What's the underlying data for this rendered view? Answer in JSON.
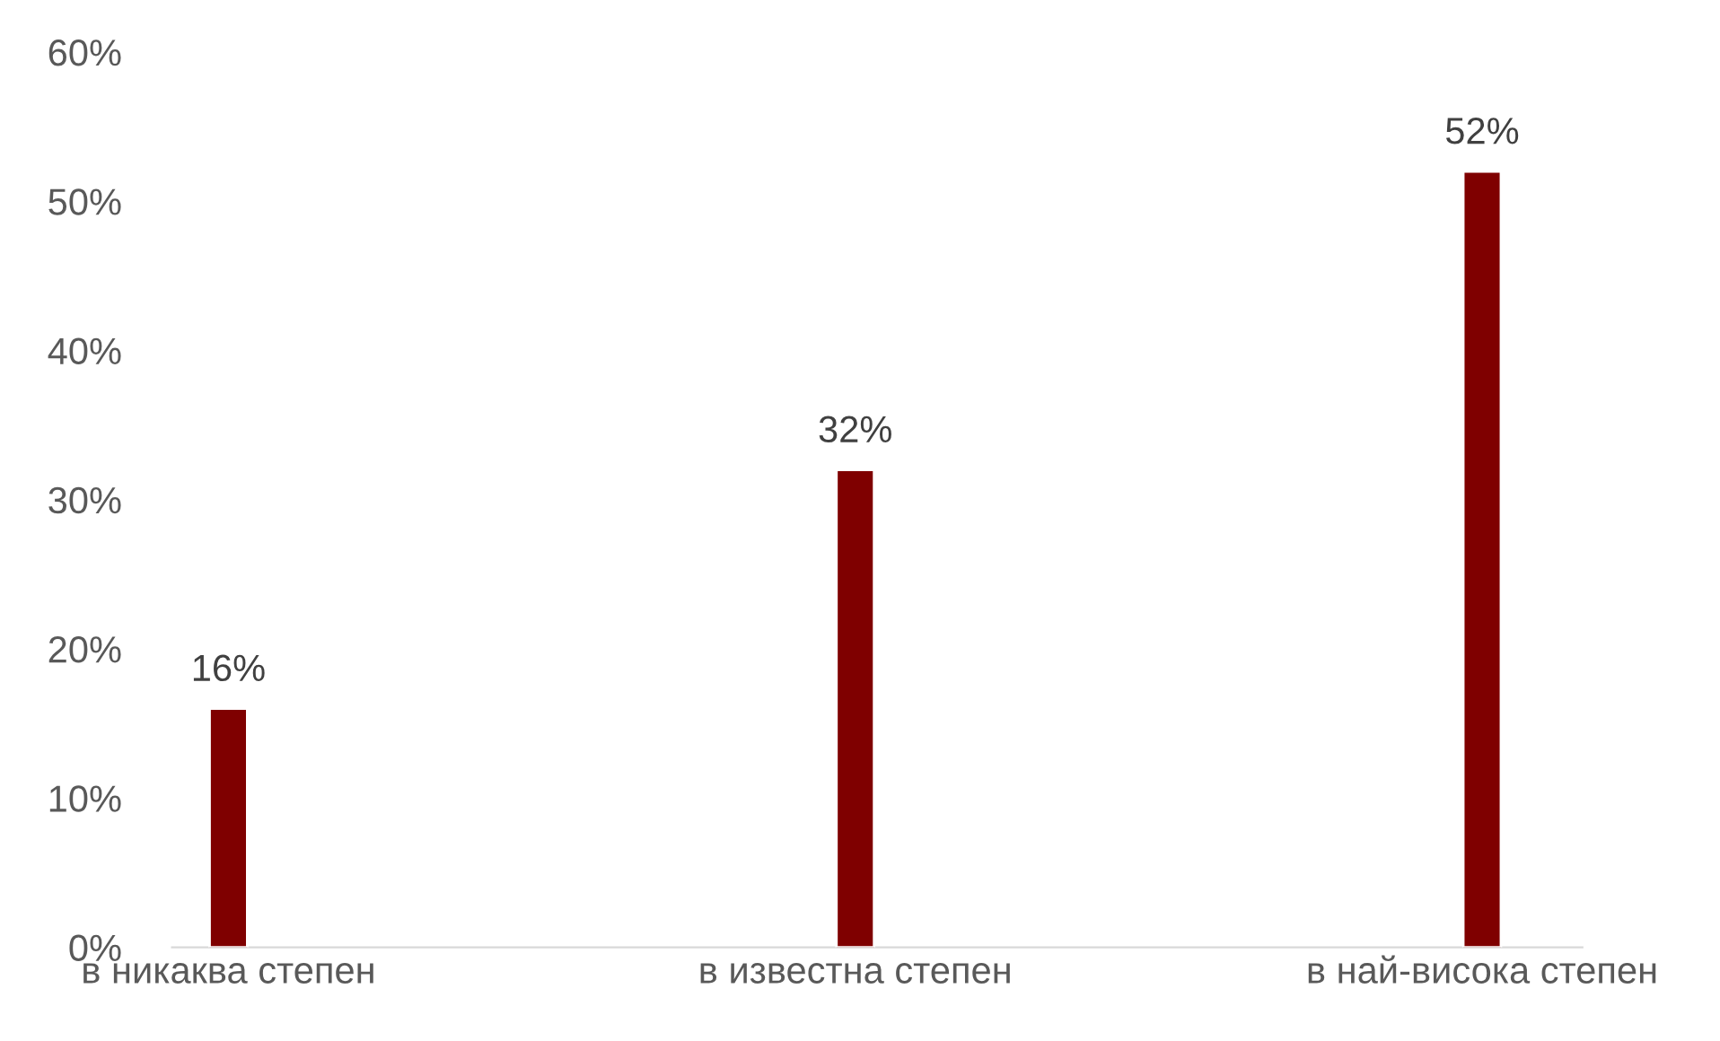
{
  "chart_data": {
    "type": "bar",
    "categories": [
      "в никаква степен",
      "в известна степен",
      "в най-висока степен"
    ],
    "values": [
      16,
      32,
      52
    ],
    "value_labels": [
      "16%",
      "32%",
      "52%"
    ],
    "color": "#7f0000",
    "ylim": [
      0,
      60
    ],
    "yticks": [
      {
        "value": 0,
        "label": "0%"
      },
      {
        "value": 10,
        "label": "10%"
      },
      {
        "value": 20,
        "label": "20%"
      },
      {
        "value": 30,
        "label": "30%"
      },
      {
        "value": 40,
        "label": "40%"
      },
      {
        "value": 50,
        "label": "50%"
      },
      {
        "value": 60,
        "label": "60%"
      }
    ],
    "grid": false,
    "legend": false
  }
}
